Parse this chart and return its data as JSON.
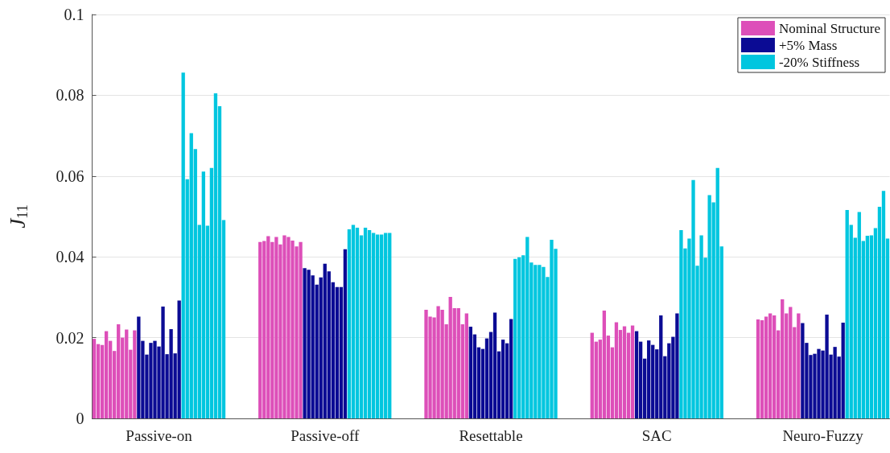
{
  "chart_data": {
    "type": "bar",
    "ylabel": "J$_{11}$",
    "ylim": [
      0,
      0.1
    ],
    "yticks": [
      0,
      0.02,
      0.04,
      0.06,
      0.08,
      0.1
    ],
    "grid": "y",
    "legend": "top right",
    "categories": [
      null,
      null,
      null,
      null,
      null,
      null,
      null,
      null,
      null,
      null,
      null,
      null,
      null,
      null,
      null,
      null,
      "Passive-on",
      null,
      null,
      null,
      null,
      null,
      null,
      null,
      null,
      null,
      null,
      null,
      null,
      null,
      null,
      null,
      null,
      null,
      null,
      null,
      null,
      null,
      null,
      null,
      null,
      null,
      null,
      null,
      null,
      null,
      null,
      null,
      null,
      null,
      null,
      null,
      null,
      null,
      null,
      null,
      null,
      "Passive-off",
      null,
      null,
      null,
      null,
      null,
      null,
      null,
      null,
      null,
      null,
      null,
      null,
      null,
      null,
      null,
      null,
      null,
      null,
      null,
      null,
      null,
      null,
      null,
      null,
      null,
      null,
      null,
      null,
      null,
      null,
      null,
      null,
      null,
      null,
      null,
      null,
      null,
      null,
      null,
      null,
      "Resettable",
      null,
      null,
      null,
      null,
      null,
      null,
      null,
      null,
      null,
      null,
      null,
      null,
      null,
      null,
      null,
      null,
      null,
      null,
      null,
      null,
      null,
      null,
      null,
      null,
      null,
      null,
      null,
      null,
      null,
      null,
      null,
      null,
      null,
      null,
      null,
      null,
      null,
      null,
      null,
      null,
      "SAC",
      null,
      null,
      null,
      null,
      null,
      null,
      null,
      null,
      null,
      null,
      null,
      null,
      null,
      null,
      null,
      null,
      null,
      null,
      null,
      null,
      null,
      null,
      null,
      null,
      null,
      null,
      null,
      null,
      null,
      null,
      null,
      null,
      null,
      null,
      null,
      null,
      null,
      null,
      null,
      null,
      "Neuro-Fuzzy",
      null,
      null,
      null,
      null,
      null,
      null,
      null,
      null,
      null,
      null,
      null,
      null,
      null,
      null,
      null,
      null
    ],
    "series": [
      {
        "name": "Nominal Structure",
        "color": "#dd4fb9",
        "values": [
          0.0197,
          0.0184,
          0.0182,
          0.0216,
          0.0192,
          0.0167,
          0.0233,
          0.02,
          0.022,
          0.017,
          0.0218,
          null,
          null,
          null,
          null,
          null,
          null,
          null,
          null,
          null,
          null,
          null,
          null,
          null,
          null,
          null,
          null,
          null,
          null,
          null,
          null,
          null,
          null,
          null,
          null,
          null,
          null,
          null,
          null,
          null,
          null,
          0.0437,
          0.0439,
          0.0451,
          0.0437,
          0.0449,
          0.0431,
          0.0453,
          0.0449,
          0.044,
          0.0426,
          0.0437,
          null,
          null,
          null,
          null,
          null,
          null,
          null,
          null,
          null,
          null,
          null,
          null,
          null,
          null,
          null,
          null,
          null,
          null,
          null,
          null,
          null,
          null,
          null,
          null,
          null,
          null,
          null,
          null,
          null,
          null,
          0.0269,
          0.0252,
          0.025,
          0.0278,
          0.0269,
          0.0233,
          0.0301,
          0.0273,
          0.0273,
          0.0233,
          0.026,
          null,
          null,
          null,
          null,
          null,
          null,
          null,
          null,
          null,
          null,
          null,
          null,
          null,
          null,
          null,
          null,
          null,
          null,
          null,
          null,
          null,
          null,
          null,
          null,
          null,
          null,
          null,
          null,
          null,
          null,
          0.0212,
          0.019,
          0.0195,
          0.0267,
          0.0205,
          0.0176,
          0.0238,
          0.0219,
          0.0228,
          0.0212,
          0.023,
          null,
          null,
          null,
          null,
          null,
          null,
          null,
          null,
          null,
          null,
          null,
          null,
          null,
          null,
          null,
          null,
          null,
          null,
          null,
          null,
          null,
          null,
          null,
          null,
          null,
          null,
          null,
          null,
          null,
          null,
          0.0245,
          0.0243,
          0.0252,
          0.026,
          0.0255,
          0.0218,
          0.0295,
          0.026,
          0.0276,
          0.0226,
          0.026,
          null,
          null,
          null,
          null,
          null,
          null,
          null,
          null,
          null,
          null,
          null,
          null,
          null,
          null,
          null,
          null,
          null,
          null,
          null,
          null,
          null,
          null
        ]
      },
      {
        "name": "+5% Mass",
        "color": "#0b0b94",
        "values": [
          null,
          null,
          null,
          null,
          null,
          null,
          null,
          null,
          null,
          null,
          null,
          0.0252,
          0.0192,
          0.0158,
          0.0187,
          0.0192,
          0.0178,
          0.0277,
          0.0159,
          0.0221,
          0.0161,
          0.0292,
          null,
          null,
          null,
          null,
          null,
          null,
          null,
          null,
          null,
          null,
          null,
          null,
          null,
          null,
          null,
          null,
          null,
          null,
          null,
          null,
          null,
          null,
          null,
          null,
          null,
          null,
          null,
          null,
          null,
          null,
          0.0372,
          0.0368,
          0.0354,
          0.0331,
          0.0349,
          0.0383,
          0.0364,
          0.0337,
          0.0325,
          0.0325,
          0.0419,
          null,
          null,
          null,
          null,
          null,
          null,
          null,
          null,
          null,
          null,
          null,
          null,
          null,
          null,
          null,
          null,
          null,
          null,
          null,
          null,
          null,
          null,
          null,
          null,
          null,
          null,
          null,
          null,
          null,
          null,
          0.0227,
          0.0208,
          0.0176,
          0.0172,
          0.0198,
          0.0214,
          0.0262,
          0.0166,
          0.0195,
          0.0186,
          0.0246,
          null,
          null,
          null,
          null,
          null,
          null,
          null,
          null,
          null,
          null,
          null,
          null,
          null,
          null,
          null,
          null,
          null,
          null,
          null,
          null,
          null,
          null,
          null,
          null,
          null,
          null,
          null,
          null,
          null,
          null,
          0.0216,
          0.019,
          0.0148,
          0.0193,
          0.0182,
          0.0171,
          0.0255,
          0.0154,
          0.0186,
          0.0202,
          0.026,
          null,
          null,
          null,
          null,
          null,
          null,
          null,
          null,
          null,
          null,
          null,
          null,
          null,
          null,
          null,
          null,
          null,
          null,
          null,
          null,
          null,
          null,
          null,
          null,
          null,
          null,
          null,
          null,
          null,
          null,
          0.0236,
          0.0187,
          0.0157,
          0.016,
          0.0172,
          0.0168,
          0.0257,
          0.0158,
          0.0177,
          0.0153,
          0.0237,
          null,
          null,
          null,
          null,
          null,
          null,
          null,
          null,
          null,
          null,
          null
        ]
      },
      {
        "name": "-20% Stiffness",
        "color": "#00c6df",
        "values": [
          null,
          null,
          null,
          null,
          null,
          null,
          null,
          null,
          null,
          null,
          null,
          null,
          null,
          null,
          null,
          null,
          null,
          null,
          null,
          null,
          null,
          null,
          0.0856,
          0.0592,
          0.0706,
          0.0667,
          0.0479,
          0.0611,
          0.0477,
          0.062,
          0.0805,
          0.0773,
          0.0491,
          null,
          null,
          null,
          null,
          null,
          null,
          null,
          null,
          null,
          null,
          null,
          null,
          null,
          null,
          null,
          null,
          null,
          null,
          null,
          null,
          null,
          null,
          null,
          null,
          null,
          null,
          null,
          null,
          null,
          null,
          0.0468,
          0.0479,
          0.0472,
          0.0453,
          0.0472,
          0.0466,
          0.0459,
          0.0455,
          0.0455,
          0.0459,
          0.0459,
          null,
          null,
          null,
          null,
          null,
          null,
          null,
          null,
          null,
          null,
          null,
          null,
          null,
          null,
          null,
          null,
          null,
          null,
          null,
          null,
          null,
          null,
          null,
          null,
          null,
          null,
          null,
          null,
          null,
          null,
          0.0395,
          0.0399,
          0.0404,
          0.0449,
          0.0386,
          0.038,
          0.038,
          0.0375,
          0.035,
          0.0442,
          0.042,
          null,
          null,
          null,
          null,
          null,
          null,
          null,
          null,
          null,
          null,
          null,
          null,
          null,
          null,
          null,
          null,
          null,
          null,
          null,
          null,
          null,
          null,
          null,
          null,
          null,
          null,
          null,
          null,
          null,
          null,
          0.0466,
          0.0421,
          0.0445,
          0.059,
          0.0378,
          0.0453,
          0.0398,
          0.0553,
          0.0535,
          0.062,
          0.0426,
          null,
          null,
          null,
          null,
          null,
          null,
          null,
          null,
          null,
          null,
          null,
          null,
          null,
          null,
          null,
          null,
          null,
          null,
          null,
          null,
          null,
          null,
          null,
          null,
          null,
          null,
          null,
          null,
          null,
          null,
          0.0516,
          0.0479,
          0.0447,
          0.0511,
          0.0439,
          0.0452,
          0.0453,
          0.0471,
          0.0524,
          0.0563,
          0.0445
        ]
      }
    ]
  }
}
